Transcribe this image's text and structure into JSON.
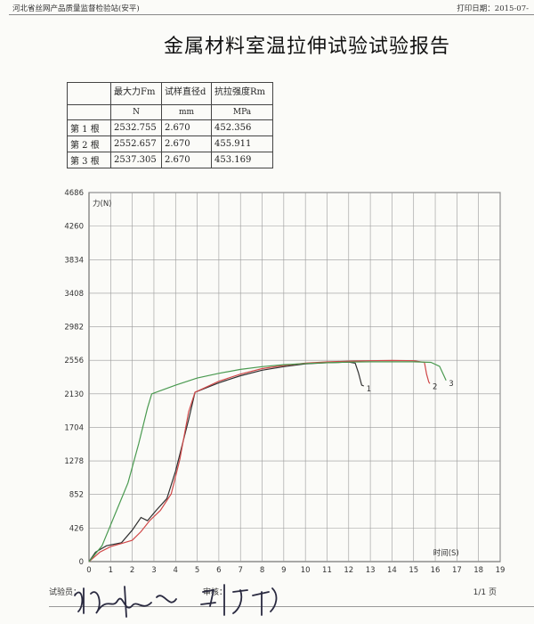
{
  "header": {
    "org": "河北省丝网产品质量监督检验站(安平)",
    "print_date": "打印日期：2015-07-"
  },
  "title": "金属材料室温拉伸试验试验报告",
  "table": {
    "columns": [
      "",
      "最大力Fm",
      "试样直径d",
      "抗拉强度Rm"
    ],
    "units": [
      "",
      "N",
      "mm",
      "MPa"
    ],
    "rows": [
      [
        "第 1 根",
        "2532.755",
        "2.670",
        "452.356"
      ],
      [
        "第 2 根",
        "2552.657",
        "2.670",
        "455.911"
      ],
      [
        "第 3 根",
        "2537.305",
        "2.670",
        "453.169"
      ]
    ]
  },
  "chart_data": {
    "type": "line",
    "ylabel": "力(N)",
    "xlabel": "时间(S)",
    "y_ticks": [
      "0",
      "426",
      "852",
      "1278",
      "1704",
      "2130",
      "2556",
      "2982",
      "3408",
      "3834",
      "4260",
      "4686"
    ],
    "x_ticks": [
      "0",
      "1",
      "2",
      "3",
      "4",
      "5",
      "6",
      "7",
      "8",
      "9",
      "10",
      "11",
      "12",
      "13",
      "14",
      "15",
      "16",
      "17",
      "18",
      "19"
    ],
    "xlim": [
      0,
      19
    ],
    "ylim": [
      0,
      4686
    ],
    "grid": true,
    "series": [
      {
        "name": "1",
        "color": "#303030",
        "points": [
          [
            0,
            0
          ],
          [
            0.3,
            120
          ],
          [
            0.8,
            200
          ],
          [
            1.5,
            240
          ],
          [
            2.0,
            400
          ],
          [
            2.4,
            560
          ],
          [
            2.7,
            520
          ],
          [
            3.1,
            650
          ],
          [
            3.6,
            800
          ],
          [
            4.0,
            1150
          ],
          [
            4.6,
            1800
          ],
          [
            4.9,
            2150
          ],
          [
            6,
            2270
          ],
          [
            7,
            2360
          ],
          [
            8,
            2430
          ],
          [
            9,
            2475
          ],
          [
            10,
            2510
          ],
          [
            11,
            2525
          ],
          [
            12,
            2533
          ],
          [
            12.3,
            2520
          ],
          [
            12.45,
            2400
          ],
          [
            12.6,
            2240
          ],
          [
            12.7,
            2230
          ]
        ]
      },
      {
        "name": "2",
        "color": "#d04848",
        "points": [
          [
            0,
            0
          ],
          [
            0.5,
            120
          ],
          [
            1.0,
            190
          ],
          [
            1.5,
            230
          ],
          [
            2.0,
            270
          ],
          [
            2.4,
            380
          ],
          [
            2.8,
            520
          ],
          [
            3.3,
            650
          ],
          [
            3.8,
            860
          ],
          [
            4.2,
            1300
          ],
          [
            4.6,
            1900
          ],
          [
            4.9,
            2150
          ],
          [
            6,
            2290
          ],
          [
            7,
            2380
          ],
          [
            8,
            2450
          ],
          [
            9,
            2490
          ],
          [
            10,
            2520
          ],
          [
            11,
            2535
          ],
          [
            12,
            2545
          ],
          [
            13,
            2550
          ],
          [
            14,
            2553
          ],
          [
            15,
            2550
          ],
          [
            15.5,
            2530
          ],
          [
            15.6,
            2380
          ],
          [
            15.7,
            2280
          ],
          [
            15.75,
            2260
          ]
        ]
      },
      {
        "name": "3",
        "color": "#4a9a50",
        "points": [
          [
            0,
            0
          ],
          [
            0.6,
            200
          ],
          [
            1.2,
            600
          ],
          [
            1.8,
            1000
          ],
          [
            2.3,
            1500
          ],
          [
            2.7,
            1950
          ],
          [
            2.9,
            2130
          ],
          [
            4,
            2240
          ],
          [
            5,
            2330
          ],
          [
            6,
            2390
          ],
          [
            7,
            2440
          ],
          [
            8,
            2475
          ],
          [
            9,
            2500
          ],
          [
            10,
            2515
          ],
          [
            11,
            2525
          ],
          [
            12,
            2533
          ],
          [
            13,
            2537
          ],
          [
            14,
            2537
          ],
          [
            15,
            2536
          ],
          [
            15.8,
            2530
          ],
          [
            16.2,
            2480
          ],
          [
            16.4,
            2360
          ],
          [
            16.5,
            2300
          ]
        ]
      }
    ]
  },
  "footer": {
    "tester_label": "试验员：",
    "reviewer_label": "审核：",
    "page": "1/1 页"
  }
}
